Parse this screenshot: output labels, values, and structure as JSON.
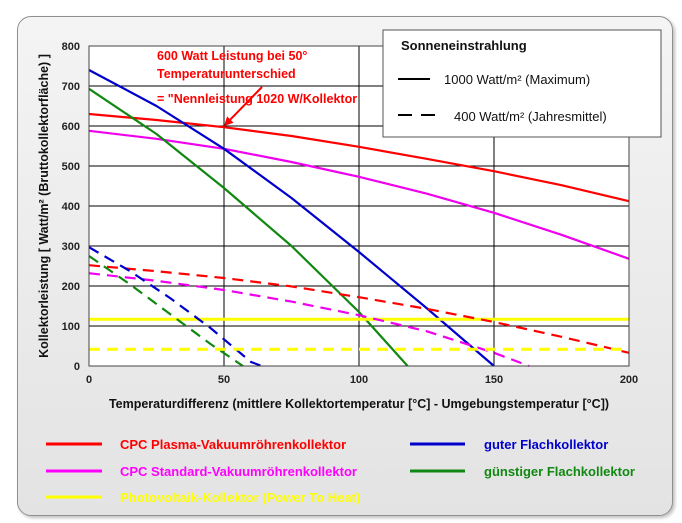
{
  "chart_data": {
    "type": "line",
    "xlabel": "Temperaturdifferenz  (mittlere Kollektortemperatur [°C] - Umgebungstemperatur [°C])",
    "ylabel": "Kollektorleistung  [ Watt/m² (Bruttokollektorfläche) ]",
    "xlim": [
      0,
      200
    ],
    "ylim": [
      0,
      800
    ],
    "x_ticks": [
      "0",
      "50",
      "100",
      "150",
      "200"
    ],
    "y_ticks": [
      "0",
      "100",
      "200",
      "300",
      "400",
      "500",
      "600",
      "700",
      "800"
    ],
    "grid": true,
    "annotation": {
      "lines": [
        "600 Watt Leistung bei 50°",
        "Temperaturunterschied",
        "= \"Nennleistung 1020 W/Kollektor"
      ],
      "x": 50,
      "y": 600
    },
    "irradiance_legend": {
      "title": "Sonneneinstrahlung",
      "items": [
        {
          "style": "solid",
          "label": "1000 Watt/m² (Maximum)"
        },
        {
          "style": "dashed",
          "label": "400 Watt/m² (Jahresmittel)"
        }
      ]
    },
    "collectors": [
      {
        "name": "CPC  Plasma-Vakuumröhrenkollektor",
        "color": "#ff0000",
        "legend_color": "#ff0000"
      },
      {
        "name": "guter  Flachkollektor",
        "color": "#0000cc",
        "legend_color": "#0000cc"
      },
      {
        "name": "CPC  Standard-Vakuumröhrenkollektor",
        "color": "#ee00ee",
        "legend_color": "#ff00ff"
      },
      {
        "name": "günstiger  Flachkollektor",
        "color": "#118811",
        "legend_color": "#118811"
      },
      {
        "name": "Photovoltaik-Kollektor  (Power To Heat)",
        "color": "#ffff00",
        "legend_color": "#ffff00"
      }
    ],
    "series": [
      {
        "collector": 0,
        "irradiance": "1000",
        "x": [
          0,
          25,
          50,
          75,
          100,
          125,
          150,
          175,
          200
        ],
        "y": [
          630,
          615,
          597,
          575,
          548,
          518,
          487,
          452,
          412
        ]
      },
      {
        "collector": 2,
        "irradiance": "1000",
        "x": [
          0,
          25,
          50,
          75,
          100,
          125,
          150,
          175,
          200
        ],
        "y": [
          588,
          568,
          543,
          510,
          473,
          431,
          383,
          328,
          268
        ]
      },
      {
        "collector": 1,
        "irradiance": "1000",
        "x": [
          0,
          25,
          50,
          75,
          100,
          125,
          150
        ],
        "y": [
          740,
          650,
          543,
          420,
          285,
          145,
          0
        ]
      },
      {
        "collector": 3,
        "irradiance": "1000",
        "x": [
          0,
          25,
          50,
          75,
          100,
          118
        ],
        "y": [
          693,
          580,
          445,
          300,
          135,
          0
        ]
      },
      {
        "collector": 4,
        "irradiance": "1000",
        "x": [
          0,
          200
        ],
        "y": [
          117,
          117
        ]
      },
      {
        "collector": 0,
        "irradiance": "400",
        "x": [
          0,
          25,
          50,
          75,
          100,
          125,
          150,
          175,
          200
        ],
        "y": [
          252,
          237,
          220,
          199,
          172,
          143,
          110,
          73,
          33
        ]
      },
      {
        "collector": 2,
        "irradiance": "400",
        "x": [
          0,
          25,
          50,
          75,
          100,
          125,
          150,
          163
        ],
        "y": [
          232,
          213,
          190,
          161,
          127,
          87,
          33,
          0
        ]
      },
      {
        "collector": 1,
        "irradiance": "400",
        "x": [
          0,
          15,
          30,
          45,
          60,
          64
        ],
        "y": [
          297,
          238,
          170,
          95,
          10,
          0
        ]
      },
      {
        "collector": 3,
        "irradiance": "400",
        "x": [
          0,
          15,
          30,
          45,
          57
        ],
        "y": [
          275,
          205,
          130,
          55,
          0
        ]
      },
      {
        "collector": 4,
        "irradiance": "400",
        "x": [
          0,
          200
        ],
        "y": [
          42,
          42
        ]
      }
    ]
  }
}
